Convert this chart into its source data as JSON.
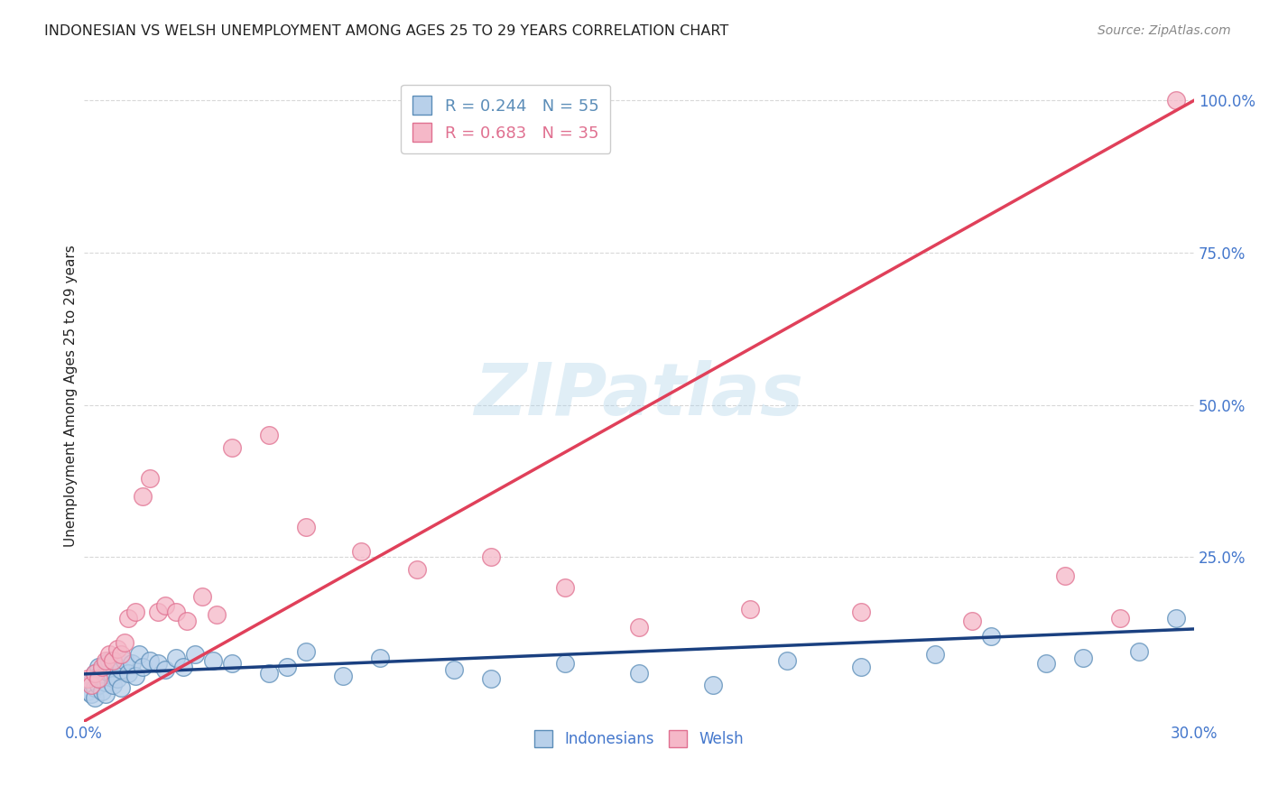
{
  "title": "INDONESIAN VS WELSH UNEMPLOYMENT AMONG AGES 25 TO 29 YEARS CORRELATION CHART",
  "source": "Source: ZipAtlas.com",
  "ylabel": "Unemployment Among Ages 25 to 29 years",
  "y_tick_labels": [
    "100.0%",
    "75.0%",
    "50.0%",
    "25.0%"
  ],
  "y_tick_values": [
    1.0,
    0.75,
    0.5,
    0.25
  ],
  "x_tick_left": "0.0%",
  "x_tick_right": "30.0%",
  "watermark": "ZIPatlas",
  "legend_R_ind": "R = 0.244",
  "legend_N_ind": "N = 55",
  "legend_R_welsh": "R = 0.683",
  "legend_N_welsh": "N = 35",
  "indonesian_color": "#b8d0ea",
  "indonesian_edge_color": "#5b8db8",
  "welsh_color": "#f5b8c8",
  "welsh_edge_color": "#e07090",
  "line_indonesian_color": "#1a4080",
  "line_welsh_color": "#e0405a",
  "background_color": "#ffffff",
  "grid_color": "#d8d8d8",
  "title_color": "#222222",
  "axis_label_color": "#4477cc",
  "source_color": "#888888",
  "indonesian_scatter_x": [
    0.001,
    0.002,
    0.002,
    0.003,
    0.003,
    0.003,
    0.004,
    0.004,
    0.004,
    0.005,
    0.005,
    0.005,
    0.006,
    0.006,
    0.006,
    0.007,
    0.007,
    0.008,
    0.008,
    0.009,
    0.009,
    0.01,
    0.01,
    0.011,
    0.012,
    0.013,
    0.014,
    0.015,
    0.016,
    0.018,
    0.02,
    0.022,
    0.025,
    0.027,
    0.03,
    0.035,
    0.04,
    0.05,
    0.055,
    0.06,
    0.07,
    0.08,
    0.1,
    0.11,
    0.13,
    0.15,
    0.17,
    0.19,
    0.21,
    0.23,
    0.245,
    0.26,
    0.27,
    0.285,
    0.295
  ],
  "indonesian_scatter_y": [
    0.03,
    0.045,
    0.025,
    0.06,
    0.035,
    0.02,
    0.07,
    0.04,
    0.055,
    0.05,
    0.03,
    0.065,
    0.045,
    0.075,
    0.025,
    0.08,
    0.06,
    0.055,
    0.04,
    0.07,
    0.05,
    0.065,
    0.035,
    0.08,
    0.06,
    0.075,
    0.055,
    0.09,
    0.07,
    0.08,
    0.075,
    0.065,
    0.085,
    0.07,
    0.09,
    0.08,
    0.075,
    0.06,
    0.07,
    0.095,
    0.055,
    0.085,
    0.065,
    0.05,
    0.075,
    0.06,
    0.04,
    0.08,
    0.07,
    0.09,
    0.12,
    0.075,
    0.085,
    0.095,
    0.15
  ],
  "welsh_scatter_x": [
    0.001,
    0.002,
    0.003,
    0.004,
    0.005,
    0.006,
    0.007,
    0.008,
    0.009,
    0.01,
    0.011,
    0.012,
    0.014,
    0.016,
    0.018,
    0.02,
    0.022,
    0.025,
    0.028,
    0.032,
    0.036,
    0.04,
    0.05,
    0.06,
    0.075,
    0.09,
    0.11,
    0.13,
    0.15,
    0.18,
    0.21,
    0.24,
    0.265,
    0.28,
    0.295
  ],
  "welsh_scatter_y": [
    0.05,
    0.04,
    0.06,
    0.05,
    0.07,
    0.08,
    0.09,
    0.08,
    0.1,
    0.09,
    0.11,
    0.15,
    0.16,
    0.35,
    0.38,
    0.16,
    0.17,
    0.16,
    0.145,
    0.185,
    0.155,
    0.43,
    0.45,
    0.3,
    0.26,
    0.23,
    0.25,
    0.2,
    0.135,
    0.165,
    0.16,
    0.145,
    0.22,
    0.15,
    1.0
  ],
  "x_lim": [
    0.0,
    0.3
  ],
  "y_lim": [
    -0.02,
    1.05
  ],
  "ind_line_x": [
    0.0,
    0.3
  ],
  "ind_line_y": [
    0.058,
    0.132
  ],
  "welsh_line_x": [
    0.0,
    0.3
  ],
  "welsh_line_y": [
    -0.02,
    1.0
  ]
}
